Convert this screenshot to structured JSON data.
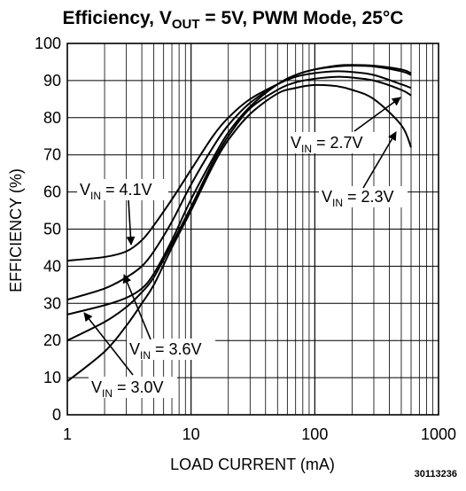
{
  "chart_data": {
    "type": "line",
    "title": {
      "prefix": "Efficiency, V",
      "subscript": "OUT",
      "suffix": " = 5V, PWM Mode, 25°C"
    },
    "xlabel": "LOAD CURRENT (mA)",
    "ylabel": "EFFICIENCY (%)",
    "x_scale": "log",
    "xlim": [
      1,
      1000
    ],
    "ylim": [
      0,
      100
    ],
    "x_ticks": [
      "1",
      "10",
      "100",
      "1000"
    ],
    "y_ticks": [
      "0",
      "10",
      "20",
      "30",
      "40",
      "50",
      "60",
      "70",
      "80",
      "90",
      "100"
    ],
    "grid": true,
    "figure_id": "30113236",
    "series": [
      {
        "name": "VIN = 4.1V",
        "x": [
          1,
          2,
          3,
          4,
          5,
          7,
          10,
          15,
          20,
          30,
          50,
          70,
          100,
          150,
          200,
          300,
          500,
          600
        ],
        "y": [
          41.5,
          42.5,
          44,
          47,
          51,
          58,
          66,
          75,
          80,
          85,
          89,
          91,
          92,
          92.5,
          92.3,
          91.5,
          89,
          88
        ]
      },
      {
        "name": "VIN = 3.6V",
        "x": [
          1,
          2,
          3,
          4,
          5,
          7,
          10,
          15,
          20,
          30,
          50,
          70,
          100,
          150,
          200,
          300,
          500,
          600
        ],
        "y": [
          31,
          34,
          37,
          40,
          44,
          52,
          62,
          72,
          78,
          84,
          89,
          91.5,
          93,
          93.8,
          94,
          93.8,
          92.5,
          91.5
        ]
      },
      {
        "name": "VIN = 3.0V",
        "x": [
          1,
          2,
          3,
          4,
          5,
          7,
          10,
          15,
          20,
          30,
          50,
          70,
          100,
          150,
          200,
          300,
          500,
          600
        ],
        "y": [
          27,
          29.5,
          31.5,
          34,
          38,
          47,
          58,
          69,
          76,
          83,
          89,
          91.5,
          93,
          94,
          94.2,
          94,
          93,
          92
        ]
      },
      {
        "name": "VIN = 2.7V",
        "x": [
          1,
          2,
          3,
          4,
          5,
          7,
          10,
          15,
          20,
          30,
          50,
          70,
          100,
          150,
          200,
          300,
          500,
          600
        ],
        "y": [
          20,
          25,
          29,
          33,
          37,
          46,
          56,
          68,
          75,
          82.5,
          87.5,
          89.5,
          90.5,
          91,
          90.8,
          90,
          87.5,
          86
        ]
      },
      {
        "name": "VIN = 2.3V",
        "x": [
          1,
          2,
          3,
          4,
          5,
          7,
          10,
          15,
          20,
          30,
          50,
          70,
          100,
          150,
          200,
          300,
          500,
          600
        ],
        "y": [
          9,
          17,
          24,
          30,
          35,
          45,
          55,
          67,
          74,
          81,
          86.5,
          88,
          88.8,
          88.5,
          87.5,
          85,
          78,
          72
        ]
      }
    ],
    "annotations": [
      {
        "text": "V",
        "sub": "IN",
        "value": " = 4.1V",
        "target": "VIN = 4.1V"
      },
      {
        "text": "V",
        "sub": "IN",
        "value": " = 3.6V",
        "target": "VIN = 3.6V"
      },
      {
        "text": "V",
        "sub": "IN",
        "value": " = 3.0V",
        "target": "VIN = 3.0V"
      },
      {
        "text": "V",
        "sub": "IN",
        "value": " = 2.7V",
        "target": "VIN = 2.7V"
      },
      {
        "text": "V",
        "sub": "IN",
        "value": " = 2.3V",
        "target": "VIN = 2.3V"
      }
    ]
  }
}
